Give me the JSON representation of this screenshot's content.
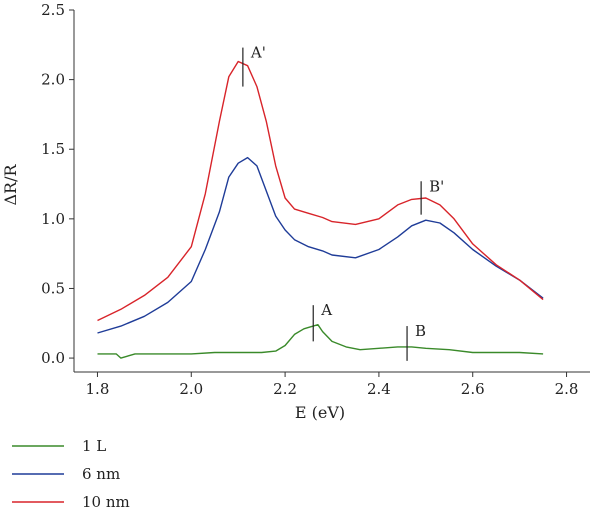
{
  "chart_data": {
    "type": "line",
    "title": "",
    "xlabel": "E (eV)",
    "ylabel": "ΔR/R",
    "xlim": [
      1.75,
      2.85
    ],
    "ylim": [
      -0.1,
      2.5
    ],
    "x_ticks": [
      1.8,
      2.0,
      2.2,
      2.4,
      2.6,
      2.8
    ],
    "x_tick_labels": [
      "1.8",
      "2.0",
      "2.2",
      "2.4",
      "2.6",
      "2.8"
    ],
    "y_ticks": [
      0.0,
      0.5,
      1.0,
      1.5,
      2.0,
      2.5
    ],
    "y_tick_labels": [
      "0.0",
      "0.5",
      "1.0",
      "1.5",
      "2.0",
      "2.5"
    ],
    "grid": false,
    "legend_position": "bottom-left, below plot",
    "series": [
      {
        "name": "1 L",
        "color": "#3a8a2a",
        "x": [
          1.8,
          1.84,
          1.85,
          1.88,
          1.92,
          1.96,
          2.0,
          2.05,
          2.1,
          2.15,
          2.18,
          2.2,
          2.22,
          2.24,
          2.25,
          2.26,
          2.27,
          2.28,
          2.3,
          2.33,
          2.36,
          2.4,
          2.44,
          2.47,
          2.5,
          2.55,
          2.6,
          2.65,
          2.7,
          2.75
        ],
        "values": [
          0.03,
          0.03,
          0.0,
          0.03,
          0.03,
          0.03,
          0.03,
          0.04,
          0.04,
          0.04,
          0.05,
          0.09,
          0.17,
          0.21,
          0.22,
          0.23,
          0.24,
          0.19,
          0.12,
          0.08,
          0.06,
          0.07,
          0.08,
          0.08,
          0.07,
          0.06,
          0.04,
          0.04,
          0.04,
          0.03
        ]
      },
      {
        "name": "6 nm",
        "color": "#1f3c98",
        "x": [
          1.8,
          1.85,
          1.9,
          1.95,
          2.0,
          2.03,
          2.06,
          2.08,
          2.1,
          2.12,
          2.14,
          2.16,
          2.18,
          2.2,
          2.22,
          2.25,
          2.28,
          2.3,
          2.35,
          2.4,
          2.44,
          2.47,
          2.5,
          2.53,
          2.56,
          2.6,
          2.65,
          2.7,
          2.75
        ],
        "values": [
          0.18,
          0.23,
          0.3,
          0.4,
          0.55,
          0.78,
          1.05,
          1.3,
          1.4,
          1.44,
          1.38,
          1.2,
          1.02,
          0.92,
          0.85,
          0.8,
          0.77,
          0.74,
          0.72,
          0.78,
          0.87,
          0.95,
          0.99,
          0.97,
          0.9,
          0.78,
          0.66,
          0.56,
          0.43
        ]
      },
      {
        "name": "10 nm",
        "color": "#d8242a",
        "x": [
          1.8,
          1.85,
          1.9,
          1.95,
          2.0,
          2.03,
          2.06,
          2.08,
          2.1,
          2.12,
          2.14,
          2.16,
          2.18,
          2.2,
          2.22,
          2.25,
          2.28,
          2.3,
          2.35,
          2.4,
          2.44,
          2.47,
          2.5,
          2.53,
          2.56,
          2.6,
          2.65,
          2.7,
          2.75
        ],
        "values": [
          0.27,
          0.35,
          0.45,
          0.58,
          0.8,
          1.18,
          1.7,
          2.02,
          2.13,
          2.1,
          1.95,
          1.7,
          1.38,
          1.15,
          1.07,
          1.04,
          1.01,
          0.98,
          0.96,
          1.0,
          1.1,
          1.14,
          1.15,
          1.1,
          1.0,
          0.82,
          0.67,
          0.56,
          0.42
        ]
      }
    ],
    "annotations": [
      {
        "label": "A'",
        "x": 2.11,
        "y_from": 1.95,
        "y_to": 2.23
      },
      {
        "label": "B'",
        "x": 2.49,
        "y_from": 1.03,
        "y_to": 1.27
      },
      {
        "label": "A",
        "x": 2.26,
        "y_from": 0.12,
        "y_to": 0.38
      },
      {
        "label": "B",
        "x": 2.46,
        "y_from": -0.02,
        "y_to": 0.23
      }
    ]
  }
}
